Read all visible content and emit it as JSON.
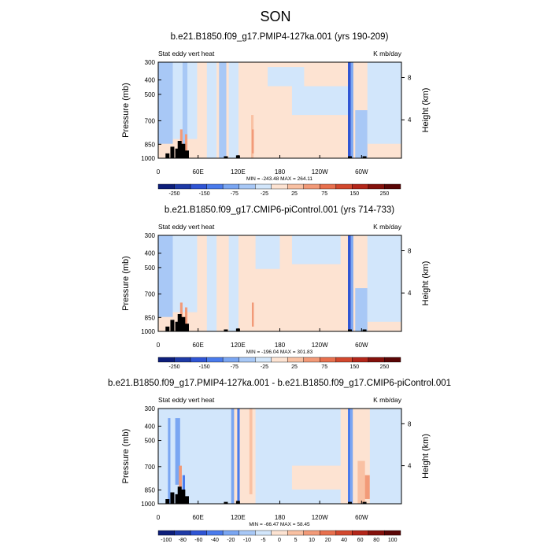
{
  "page": {
    "title": "SON"
  },
  "colorbar_palettes": {
    "full": [
      "#0d1e7a",
      "#1e3aa6",
      "#2f55d4",
      "#4a7bec",
      "#7aa6f2",
      "#a8c8f6",
      "#d2e6fb",
      "#fde3d2",
      "#f9c1a3",
      "#f29a78",
      "#e8704e",
      "#d2482e",
      "#b3261a",
      "#84110c",
      "#5a0606"
    ],
    "diff": [
      "#0d1e7a",
      "#1e3aa6",
      "#2f55d4",
      "#4a7bec",
      "#7aa6f2",
      "#a8c8f6",
      "#d2e6fb",
      "#fde3d2",
      "#f9c1a3",
      "#f29a78",
      "#e8704e",
      "#d2482e",
      "#b3261a",
      "#84110c",
      "#5a0606"
    ]
  },
  "chart_data": [
    {
      "type": "heatmap",
      "title": "b.e21.B1850.f09_g17.PMIP4-127ka.001 (yrs 190-209)",
      "left_label": "Stat eddy vert heat",
      "right_label": "K mb/day",
      "ylabel": "Pressure (mb)",
      "ylabel_right": "Height (km)",
      "x_ticks": [
        "0",
        "60E",
        "120E",
        "180",
        "120W",
        "60W"
      ],
      "y_ticks": [
        "300",
        "400",
        "500",
        "700",
        "850",
        "1000"
      ],
      "y_ticks_right": [
        "8",
        "4"
      ],
      "stats": "MIN = -243.48   MAX = 264.11",
      "colorbar_labels": [
        "-250",
        "-150",
        "-75",
        "-25",
        "25",
        "75",
        "150",
        "250"
      ],
      "palette": "full"
    },
    {
      "type": "heatmap",
      "title": "b.e21.B1850.f09_g17.CMIP6-piControl.001 (yrs 714-733)",
      "left_label": "Stat eddy vert heat",
      "right_label": "K mb/day",
      "ylabel": "Pressure (mb)",
      "ylabel_right": "Height (km)",
      "x_ticks": [
        "0",
        "60E",
        "120E",
        "180",
        "120W",
        "60W"
      ],
      "y_ticks": [
        "300",
        "400",
        "500",
        "700",
        "850",
        "1000"
      ],
      "y_ticks_right": [
        "8",
        "4"
      ],
      "stats": "MIN = -196.04   MAX = 301.83",
      "colorbar_labels": [
        "-250",
        "-150",
        "-75",
        "-25",
        "25",
        "75",
        "150",
        "250"
      ],
      "palette": "full"
    },
    {
      "type": "heatmap",
      "title": "b.e21.B1850.f09_g17.PMIP4-127ka.001 - b.e21.B1850.f09_g17.CMIP6-piControl.001",
      "left_label": "Stat eddy vert heat",
      "right_label": "K mb/day",
      "ylabel": "Pressure (mb)",
      "ylabel_right": "Height (km)",
      "x_ticks": [
        "0",
        "60E",
        "120E",
        "180",
        "120W",
        "60W"
      ],
      "y_ticks": [
        "300",
        "400",
        "500",
        "700",
        "850",
        "1000"
      ],
      "y_ticks_right": [
        "8",
        "4"
      ],
      "stats": "MIN = -66.47   MAX = 58.45",
      "colorbar_labels": [
        "-100",
        "-80",
        "-60",
        "-40",
        "-20",
        "-10",
        "-5",
        "0",
        "5",
        "10",
        "20",
        "40",
        "60",
        "80",
        "100"
      ],
      "palette": "diff"
    }
  ]
}
